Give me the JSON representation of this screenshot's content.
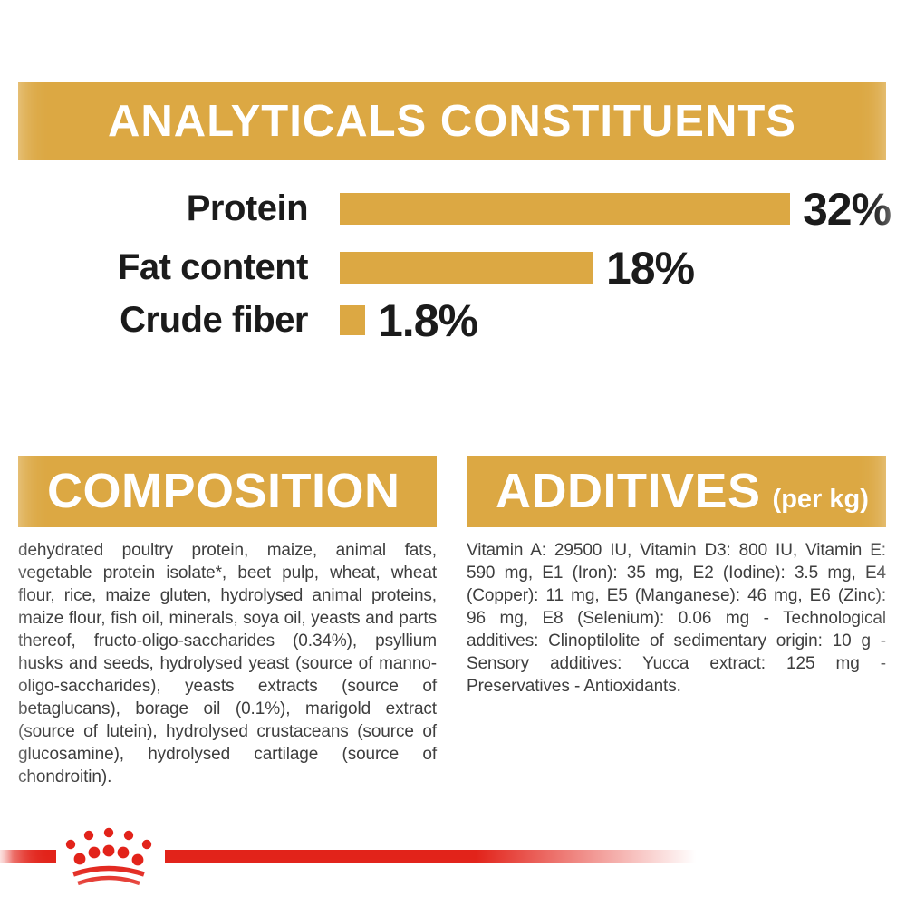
{
  "page": {
    "title": "ANALYTICALS CONSTITUENTS"
  },
  "chart_data": {
    "type": "bar",
    "orientation": "horizontal",
    "title": "ANALYTICALS CONSTITUENTS",
    "categories": [
      "Protein",
      "Fat content",
      "Crude fiber"
    ],
    "values": [
      32,
      18,
      1.8
    ],
    "value_labels": [
      "32%",
      "18%",
      "1.8%"
    ],
    "unit": "%",
    "xlim": [
      0,
      32
    ],
    "bar_color": "#dca843",
    "grid": false,
    "legend": false
  },
  "sections": {
    "composition": {
      "title": "COMPOSITION",
      "body": "dehydrated poultry protein, maize, animal fats, vegetable protein isolate*, beet pulp, wheat, wheat flour, rice, maize gluten, hydrolysed animal proteins, maize flour, fish oil, minerals, soya oil, yeasts and parts thereof, fructo-oligo-saccharides (0.34%), psyllium husks and seeds, hydrolysed yeast (source of manno-oligo-saccharides), yeasts extracts (source of betaglucans), borage oil (0.1%), marigold extract (source of lutein), hydrolysed crustaceans (source of glucosamine), hydrolysed cartilage (source of chondroitin)."
    },
    "additives": {
      "title": "ADDITIVES",
      "title_suffix": "(per kg)",
      "body": "Vitamin A: 29500 IU, Vitamin D3: 800 IU, Vitamin E: 590 mg, E1 (Iron): 35 mg, E2 (Iodine): 3.5 mg, E4 (Copper): 11 mg, E5 (Manganese): 46 mg, E6 (Zinc): 96 mg, E8 (Selenium): 0.06 mg - Technological additives: Clinoptilolite of sedimentary origin: 10 g - Sensory additives: Yucca extract: 125 mg - Preservatives - Antioxidants."
    }
  },
  "branding": {
    "logo": "royal-canin-crown",
    "logo_color": "#e2231a"
  },
  "colors": {
    "gold": "#dca843",
    "red": "#e2231a",
    "text_dark": "#1b1b1b",
    "text_body": "#3e3e3e"
  }
}
